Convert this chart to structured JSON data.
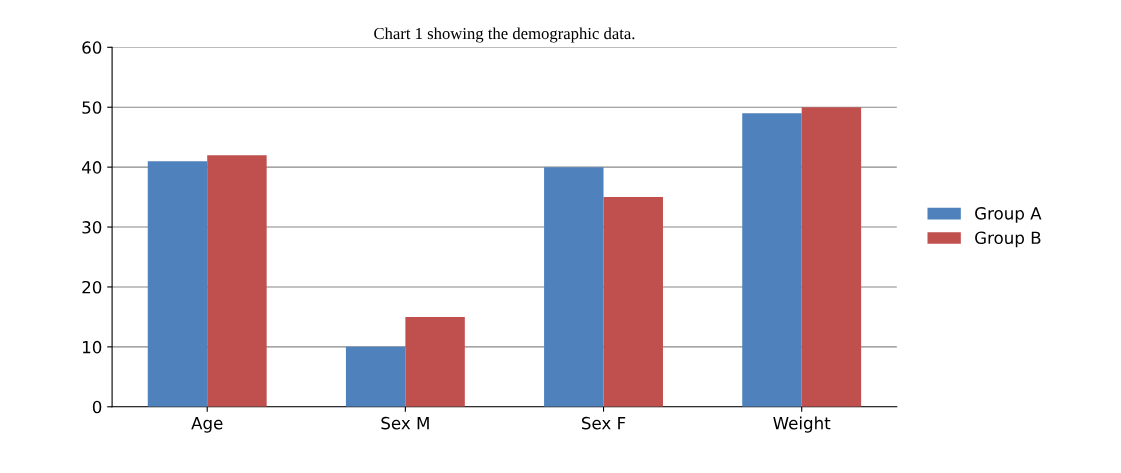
{
  "chart_data": {
    "type": "bar",
    "title": "Chart 1 showing the demographic data.",
    "categories": [
      "Age",
      "Sex M",
      "Sex F",
      "Weight"
    ],
    "series": [
      {
        "name": "Group A",
        "color": "#4f81bd",
        "values": [
          41,
          10,
          40,
          49
        ]
      },
      {
        "name": "Group B",
        "color": "#c0504d",
        "values": [
          42,
          15,
          35,
          50
        ]
      }
    ],
    "ylim": [
      0,
      60
    ],
    "yticks": [
      0,
      10,
      20,
      30,
      40,
      50,
      60
    ],
    "grid": "y",
    "legend": "right"
  }
}
